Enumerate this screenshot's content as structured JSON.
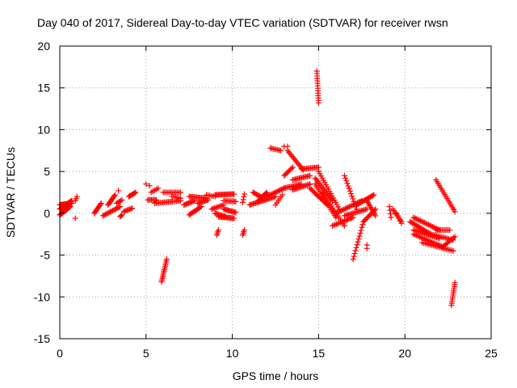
{
  "chart_data": {
    "type": "scatter",
    "title": "Day 040 of 2017, Sidereal Day-to-day VTEC variation (SDTVAR) for receiver rwsn",
    "xlabel": "GPS time / hours",
    "ylabel": "SDTVAR / TECUs",
    "xlim": [
      0,
      25
    ],
    "ylim": [
      -15,
      20
    ],
    "xticks": [
      0,
      5,
      10,
      15,
      20,
      25
    ],
    "yticks": [
      -15,
      -10,
      -5,
      0,
      5,
      10,
      15,
      20
    ],
    "grid": true,
    "marker": "+",
    "color": "#ff0000",
    "series": [
      {
        "name": "rwsn",
        "segments": [
          {
            "x0": 0.0,
            "y0": 0.5,
            "x1": 0.7,
            "y1": 1.5,
            "n": 30
          },
          {
            "x0": 0.0,
            "y0": 1.0,
            "x1": 0.7,
            "y1": 1.2,
            "n": 25
          },
          {
            "x0": 0.0,
            "y0": -0.2,
            "x1": 0.6,
            "y1": 0.8,
            "n": 20
          },
          {
            "x0": 0.9,
            "y0": 1.5,
            "x1": 1.0,
            "y1": 2.0,
            "n": 3
          },
          {
            "x0": 0.9,
            "y0": -0.6,
            "x1": 0.9,
            "y1": -0.6,
            "n": 1
          },
          {
            "x0": 2.0,
            "y0": 0.0,
            "x1": 2.4,
            "y1": 1.2,
            "n": 10
          },
          {
            "x0": 2.5,
            "y0": -0.3,
            "x1": 3.5,
            "y1": 0.8,
            "n": 15
          },
          {
            "x0": 2.8,
            "y0": 1.0,
            "x1": 3.2,
            "y1": 2.2,
            "n": 10
          },
          {
            "x0": 3.3,
            "y0": 1.2,
            "x1": 3.6,
            "y1": 1.6,
            "n": 5
          },
          {
            "x0": 3.4,
            "y0": 2.7,
            "x1": 3.4,
            "y1": 2.7,
            "n": 1
          },
          {
            "x0": 3.5,
            "y0": -0.4,
            "x1": 3.6,
            "y1": -0.2,
            "n": 3
          },
          {
            "x0": 3.7,
            "y0": 0.2,
            "x1": 4.2,
            "y1": 0.6,
            "n": 8
          },
          {
            "x0": 4.0,
            "y0": 2.0,
            "x1": 4.4,
            "y1": 2.5,
            "n": 8
          },
          {
            "x0": 5.0,
            "y0": 3.5,
            "x1": 5.2,
            "y1": 3.3,
            "n": 2
          },
          {
            "x0": 5.1,
            "y0": 1.6,
            "x1": 5.6,
            "y1": 1.6,
            "n": 8
          },
          {
            "x0": 5.3,
            "y0": 2.5,
            "x1": 5.7,
            "y1": 3.0,
            "n": 5
          },
          {
            "x0": 5.5,
            "y0": 1.2,
            "x1": 7.0,
            "y1": 1.5,
            "n": 20
          },
          {
            "x0": 5.9,
            "y0": -8.2,
            "x1": 6.2,
            "y1": -5.5,
            "n": 14
          },
          {
            "x0": 6.0,
            "y0": 2.5,
            "x1": 7.0,
            "y1": 2.5,
            "n": 12
          },
          {
            "x0": 6.5,
            "y0": 2.0,
            "x1": 7.0,
            "y1": 1.8,
            "n": 6
          },
          {
            "x0": 7.2,
            "y0": 1.0,
            "x1": 7.8,
            "y1": 1.5,
            "n": 10
          },
          {
            "x0": 7.5,
            "y0": 2.0,
            "x1": 8.5,
            "y1": 1.8,
            "n": 15
          },
          {
            "x0": 7.5,
            "y0": -0.2,
            "x1": 8.2,
            "y1": 0.8,
            "n": 12
          },
          {
            "x0": 8.0,
            "y0": 1.2,
            "x1": 8.6,
            "y1": 1.6,
            "n": 10
          },
          {
            "x0": 8.5,
            "y0": 2.2,
            "x1": 9.0,
            "y1": 2.0,
            "n": 6
          },
          {
            "x0": 8.8,
            "y0": 0.5,
            "x1": 9.5,
            "y1": 1.0,
            "n": 10
          },
          {
            "x0": 9.1,
            "y0": -2.6,
            "x1": 9.2,
            "y1": -2.0,
            "n": 4
          },
          {
            "x0": 9.0,
            "y0": 2.2,
            "x1": 10.1,
            "y1": 2.3,
            "n": 18
          },
          {
            "x0": 9.0,
            "y0": 0.0,
            "x1": 9.6,
            "y1": -0.4,
            "n": 10
          },
          {
            "x0": 9.5,
            "y0": 0.5,
            "x1": 10.2,
            "y1": 0.1,
            "n": 12
          },
          {
            "x0": 9.5,
            "y0": 1.5,
            "x1": 10.2,
            "y1": 1.4,
            "n": 10
          },
          {
            "x0": 9.2,
            "y0": -0.4,
            "x1": 10.1,
            "y1": -0.6,
            "n": 15
          },
          {
            "x0": 10.6,
            "y0": -2.6,
            "x1": 10.7,
            "y1": -2.0,
            "n": 4
          },
          {
            "x0": 10.6,
            "y0": 1.3,
            "x1": 10.7,
            "y1": 2.3,
            "n": 4
          },
          {
            "x0": 11.0,
            "y0": 1.0,
            "x1": 12.5,
            "y1": 2.0,
            "n": 22
          },
          {
            "x0": 11.2,
            "y0": 2.5,
            "x1": 11.8,
            "y1": 1.8,
            "n": 10
          },
          {
            "x0": 11.5,
            "y0": 1.5,
            "x1": 12.0,
            "y1": 2.5,
            "n": 10
          },
          {
            "x0": 12.0,
            "y0": 2.0,
            "x1": 13.0,
            "y1": 3.0,
            "n": 15
          },
          {
            "x0": 12.2,
            "y0": 7.8,
            "x1": 12.8,
            "y1": 7.5,
            "n": 8
          },
          {
            "x0": 12.5,
            "y0": 1.0,
            "x1": 12.9,
            "y1": 2.2,
            "n": 6
          },
          {
            "x0": 13.0,
            "y0": 8.0,
            "x1": 13.2,
            "y1": 8.0,
            "n": 2
          },
          {
            "x0": 13.0,
            "y0": 4.5,
            "x1": 13.5,
            "y1": 5.5,
            "n": 8
          },
          {
            "x0": 13.2,
            "y0": 7.5,
            "x1": 14.1,
            "y1": 5.2,
            "n": 14
          },
          {
            "x0": 13.0,
            "y0": 3.0,
            "x1": 14.0,
            "y1": 3.5,
            "n": 14
          },
          {
            "x0": 13.5,
            "y0": 4.0,
            "x1": 14.5,
            "y1": 4.5,
            "n": 14
          },
          {
            "x0": 14.0,
            "y0": 5.3,
            "x1": 15.0,
            "y1": 5.5,
            "n": 14
          },
          {
            "x0": 13.5,
            "y0": 2.8,
            "x1": 14.5,
            "y1": 3.5,
            "n": 14
          },
          {
            "x0": 14.9,
            "y0": 17.0,
            "x1": 15.0,
            "y1": 13.2,
            "n": 14
          },
          {
            "x0": 14.5,
            "y0": 3.0,
            "x1": 15.5,
            "y1": 1.0,
            "n": 16
          },
          {
            "x0": 14.8,
            "y0": 4.2,
            "x1": 15.8,
            "y1": 1.5,
            "n": 16
          },
          {
            "x0": 15.0,
            "y0": 5.0,
            "x1": 16.2,
            "y1": 0.5,
            "n": 18
          },
          {
            "x0": 14.8,
            "y0": 3.5,
            "x1": 16.0,
            "y1": -0.5,
            "n": 18
          },
          {
            "x0": 15.2,
            "y0": 2.5,
            "x1": 16.5,
            "y1": -1.5,
            "n": 18
          },
          {
            "x0": 15.8,
            "y0": -1.5,
            "x1": 17.0,
            "y1": -0.5,
            "n": 16
          },
          {
            "x0": 16.0,
            "y0": 0.0,
            "x1": 17.5,
            "y1": 1.5,
            "n": 20
          },
          {
            "x0": 16.5,
            "y0": 4.5,
            "x1": 17.2,
            "y1": 0.5,
            "n": 14
          },
          {
            "x0": 16.5,
            "y0": -0.3,
            "x1": 17.8,
            "y1": 0.5,
            "n": 18
          },
          {
            "x0": 17.0,
            "y0": -5.5,
            "x1": 17.6,
            "y1": -1.0,
            "n": 14
          },
          {
            "x0": 17.2,
            "y0": 1.0,
            "x1": 18.2,
            "y1": 2.2,
            "n": 16
          },
          {
            "x0": 17.6,
            "y0": -1.0,
            "x1": 18.3,
            "y1": 0.5,
            "n": 12
          },
          {
            "x0": 17.8,
            "y0": 1.5,
            "x1": 18.3,
            "y1": -0.3,
            "n": 10
          },
          {
            "x0": 17.8,
            "y0": -4.2,
            "x1": 17.8,
            "y1": -3.8,
            "n": 2
          },
          {
            "x0": 19.1,
            "y0": 0.8,
            "x1": 19.2,
            "y1": -0.5,
            "n": 4
          },
          {
            "x0": 19.3,
            "y0": 0.5,
            "x1": 19.8,
            "y1": -1.0,
            "n": 8
          },
          {
            "x0": 19.5,
            "y0": 0.0,
            "x1": 19.8,
            "y1": -1.2,
            "n": 5
          },
          {
            "x0": 20.3,
            "y0": -1.0,
            "x1": 21.5,
            "y1": -2.5,
            "n": 18
          },
          {
            "x0": 20.5,
            "y0": -0.5,
            "x1": 22.0,
            "y1": -2.0,
            "n": 20
          },
          {
            "x0": 20.5,
            "y0": -2.0,
            "x1": 22.0,
            "y1": -3.0,
            "n": 20
          },
          {
            "x0": 20.5,
            "y0": -2.5,
            "x1": 22.2,
            "y1": -4.0,
            "n": 20
          },
          {
            "x0": 21.0,
            "y0": -3.5,
            "x1": 22.8,
            "y1": -4.5,
            "n": 20
          },
          {
            "x0": 21.5,
            "y0": -2.5,
            "x1": 22.8,
            "y1": -3.2,
            "n": 16
          },
          {
            "x0": 21.8,
            "y0": -2.0,
            "x1": 22.6,
            "y1": -2.0,
            "n": 10
          },
          {
            "x0": 21.8,
            "y0": 4.0,
            "x1": 22.9,
            "y1": 0.2,
            "n": 18
          },
          {
            "x0": 22.2,
            "y0": -4.0,
            "x1": 22.9,
            "y1": -2.8,
            "n": 10
          },
          {
            "x0": 22.7,
            "y0": -11.0,
            "x1": 22.9,
            "y1": -8.3,
            "n": 12
          }
        ]
      }
    ]
  }
}
